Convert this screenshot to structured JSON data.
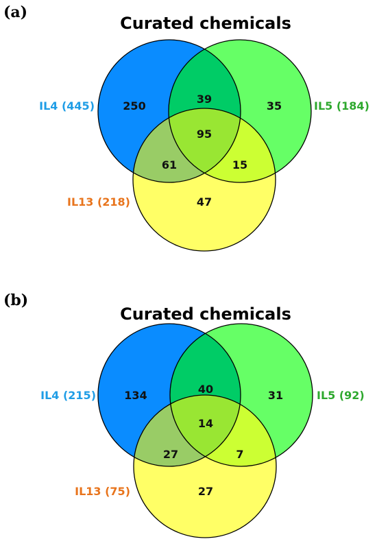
{
  "colors": {
    "il4": "#0a8cff",
    "il5": "#66ff66",
    "il13": "#ffff66",
    "il4_il5": "#00cc66",
    "il4_il13": "#99cc66",
    "il5_il13": "#ccff33",
    "all": "#99e633",
    "label_il4": "#1f9de6",
    "label_il5": "#2ea82e",
    "label_il13": "#e8741c"
  },
  "panels": [
    {
      "letter": "(a)",
      "title": "Curated chemicals",
      "labels": {
        "il4": "IL4 (445)",
        "il5": "IL5 (184)",
        "il13": "IL13 (218)"
      },
      "counts": {
        "il4_only": "250",
        "il5_only": "35",
        "il13_only": "47",
        "il4_il5": "39",
        "il4_il13": "61",
        "il5_il13": "15",
        "all": "95"
      }
    },
    {
      "letter": "(b)",
      "title": "Curated chemicals",
      "labels": {
        "il4": "IL4 (215)",
        "il5": "IL5 (92)",
        "il13": "IL13 (75)"
      },
      "counts": {
        "il4_only": "134",
        "il5_only": "31",
        "il13_only": "27",
        "il4_il5": "40",
        "il4_il13": "27",
        "il5_il13": "7",
        "all": "14"
      }
    }
  ]
}
